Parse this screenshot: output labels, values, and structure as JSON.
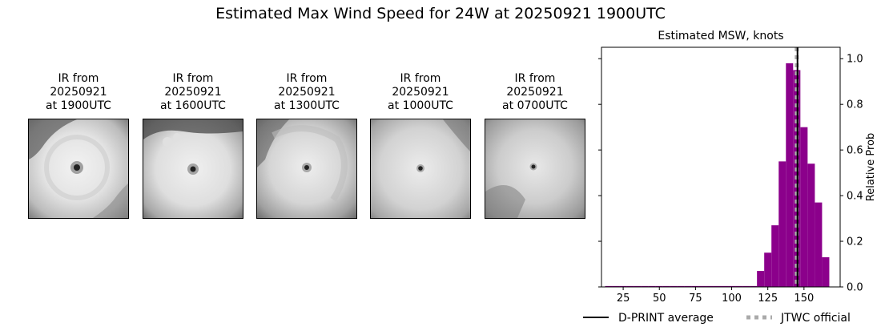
{
  "title": "Estimated Max Wind Speed for 24W at 20250921 1900UTC",
  "panels": [
    {
      "line1": "IR from",
      "line2": "20250921",
      "line3": "at 1900UTC"
    },
    {
      "line1": "IR from",
      "line2": "20250921",
      "line3": "at 1600UTC"
    },
    {
      "line1": "IR from",
      "line2": "20250921",
      "line3": "at 1300UTC"
    },
    {
      "line1": "IR from",
      "line2": "20250921",
      "line3": "at 1000UTC"
    },
    {
      "line1": "IR from",
      "line2": "20250921",
      "line3": "at 0700UTC"
    }
  ],
  "chart_data": {
    "type": "bar",
    "title": "Estimated MSW, knots",
    "xlabel": "",
    "ylabel": "Relative Prob",
    "xlim": [
      10,
      175
    ],
    "ylim": [
      0,
      1.05
    ],
    "xticks": [
      25,
      50,
      75,
      100,
      125,
      150
    ],
    "yticks": [
      0.0,
      0.2,
      0.4,
      0.6,
      0.8,
      1.0
    ],
    "ytick_labels": [
      "0.0",
      "0.2",
      "0.4",
      "0.6",
      "0.8",
      "1.0"
    ],
    "bin_width": 5,
    "bins": [
      {
        "x": 15,
        "value": 0.004
      },
      {
        "x": 20,
        "value": 0.004
      },
      {
        "x": 25,
        "value": 0.004
      },
      {
        "x": 30,
        "value": 0.004
      },
      {
        "x": 35,
        "value": 0.004
      },
      {
        "x": 40,
        "value": 0.004
      },
      {
        "x": 45,
        "value": 0.004
      },
      {
        "x": 50,
        "value": 0.004
      },
      {
        "x": 55,
        "value": 0.004
      },
      {
        "x": 60,
        "value": 0.004
      },
      {
        "x": 65,
        "value": 0.004
      },
      {
        "x": 70,
        "value": 0.004
      },
      {
        "x": 75,
        "value": 0.004
      },
      {
        "x": 80,
        "value": 0.004
      },
      {
        "x": 85,
        "value": 0.004
      },
      {
        "x": 90,
        "value": 0.004
      },
      {
        "x": 95,
        "value": 0.004
      },
      {
        "x": 100,
        "value": 0.004
      },
      {
        "x": 105,
        "value": 0.004
      },
      {
        "x": 110,
        "value": 0.004
      },
      {
        "x": 115,
        "value": 0.004
      },
      {
        "x": 120,
        "value": 0.07
      },
      {
        "x": 125,
        "value": 0.15
      },
      {
        "x": 130,
        "value": 0.27
      },
      {
        "x": 135,
        "value": 0.55
      },
      {
        "x": 140,
        "value": 0.98
      },
      {
        "x": 145,
        "value": 0.95
      },
      {
        "x": 150,
        "value": 0.7
      },
      {
        "x": 155,
        "value": 0.54
      },
      {
        "x": 160,
        "value": 0.37
      },
      {
        "x": 165,
        "value": 0.13
      }
    ],
    "bar_color": "#8b008b",
    "dprint_average": 145.5,
    "jtwc_official": 145,
    "legend": {
      "placement": "bottom",
      "dprint_label": "D-PRINT average",
      "jtwc_label": "JTWC official"
    }
  }
}
